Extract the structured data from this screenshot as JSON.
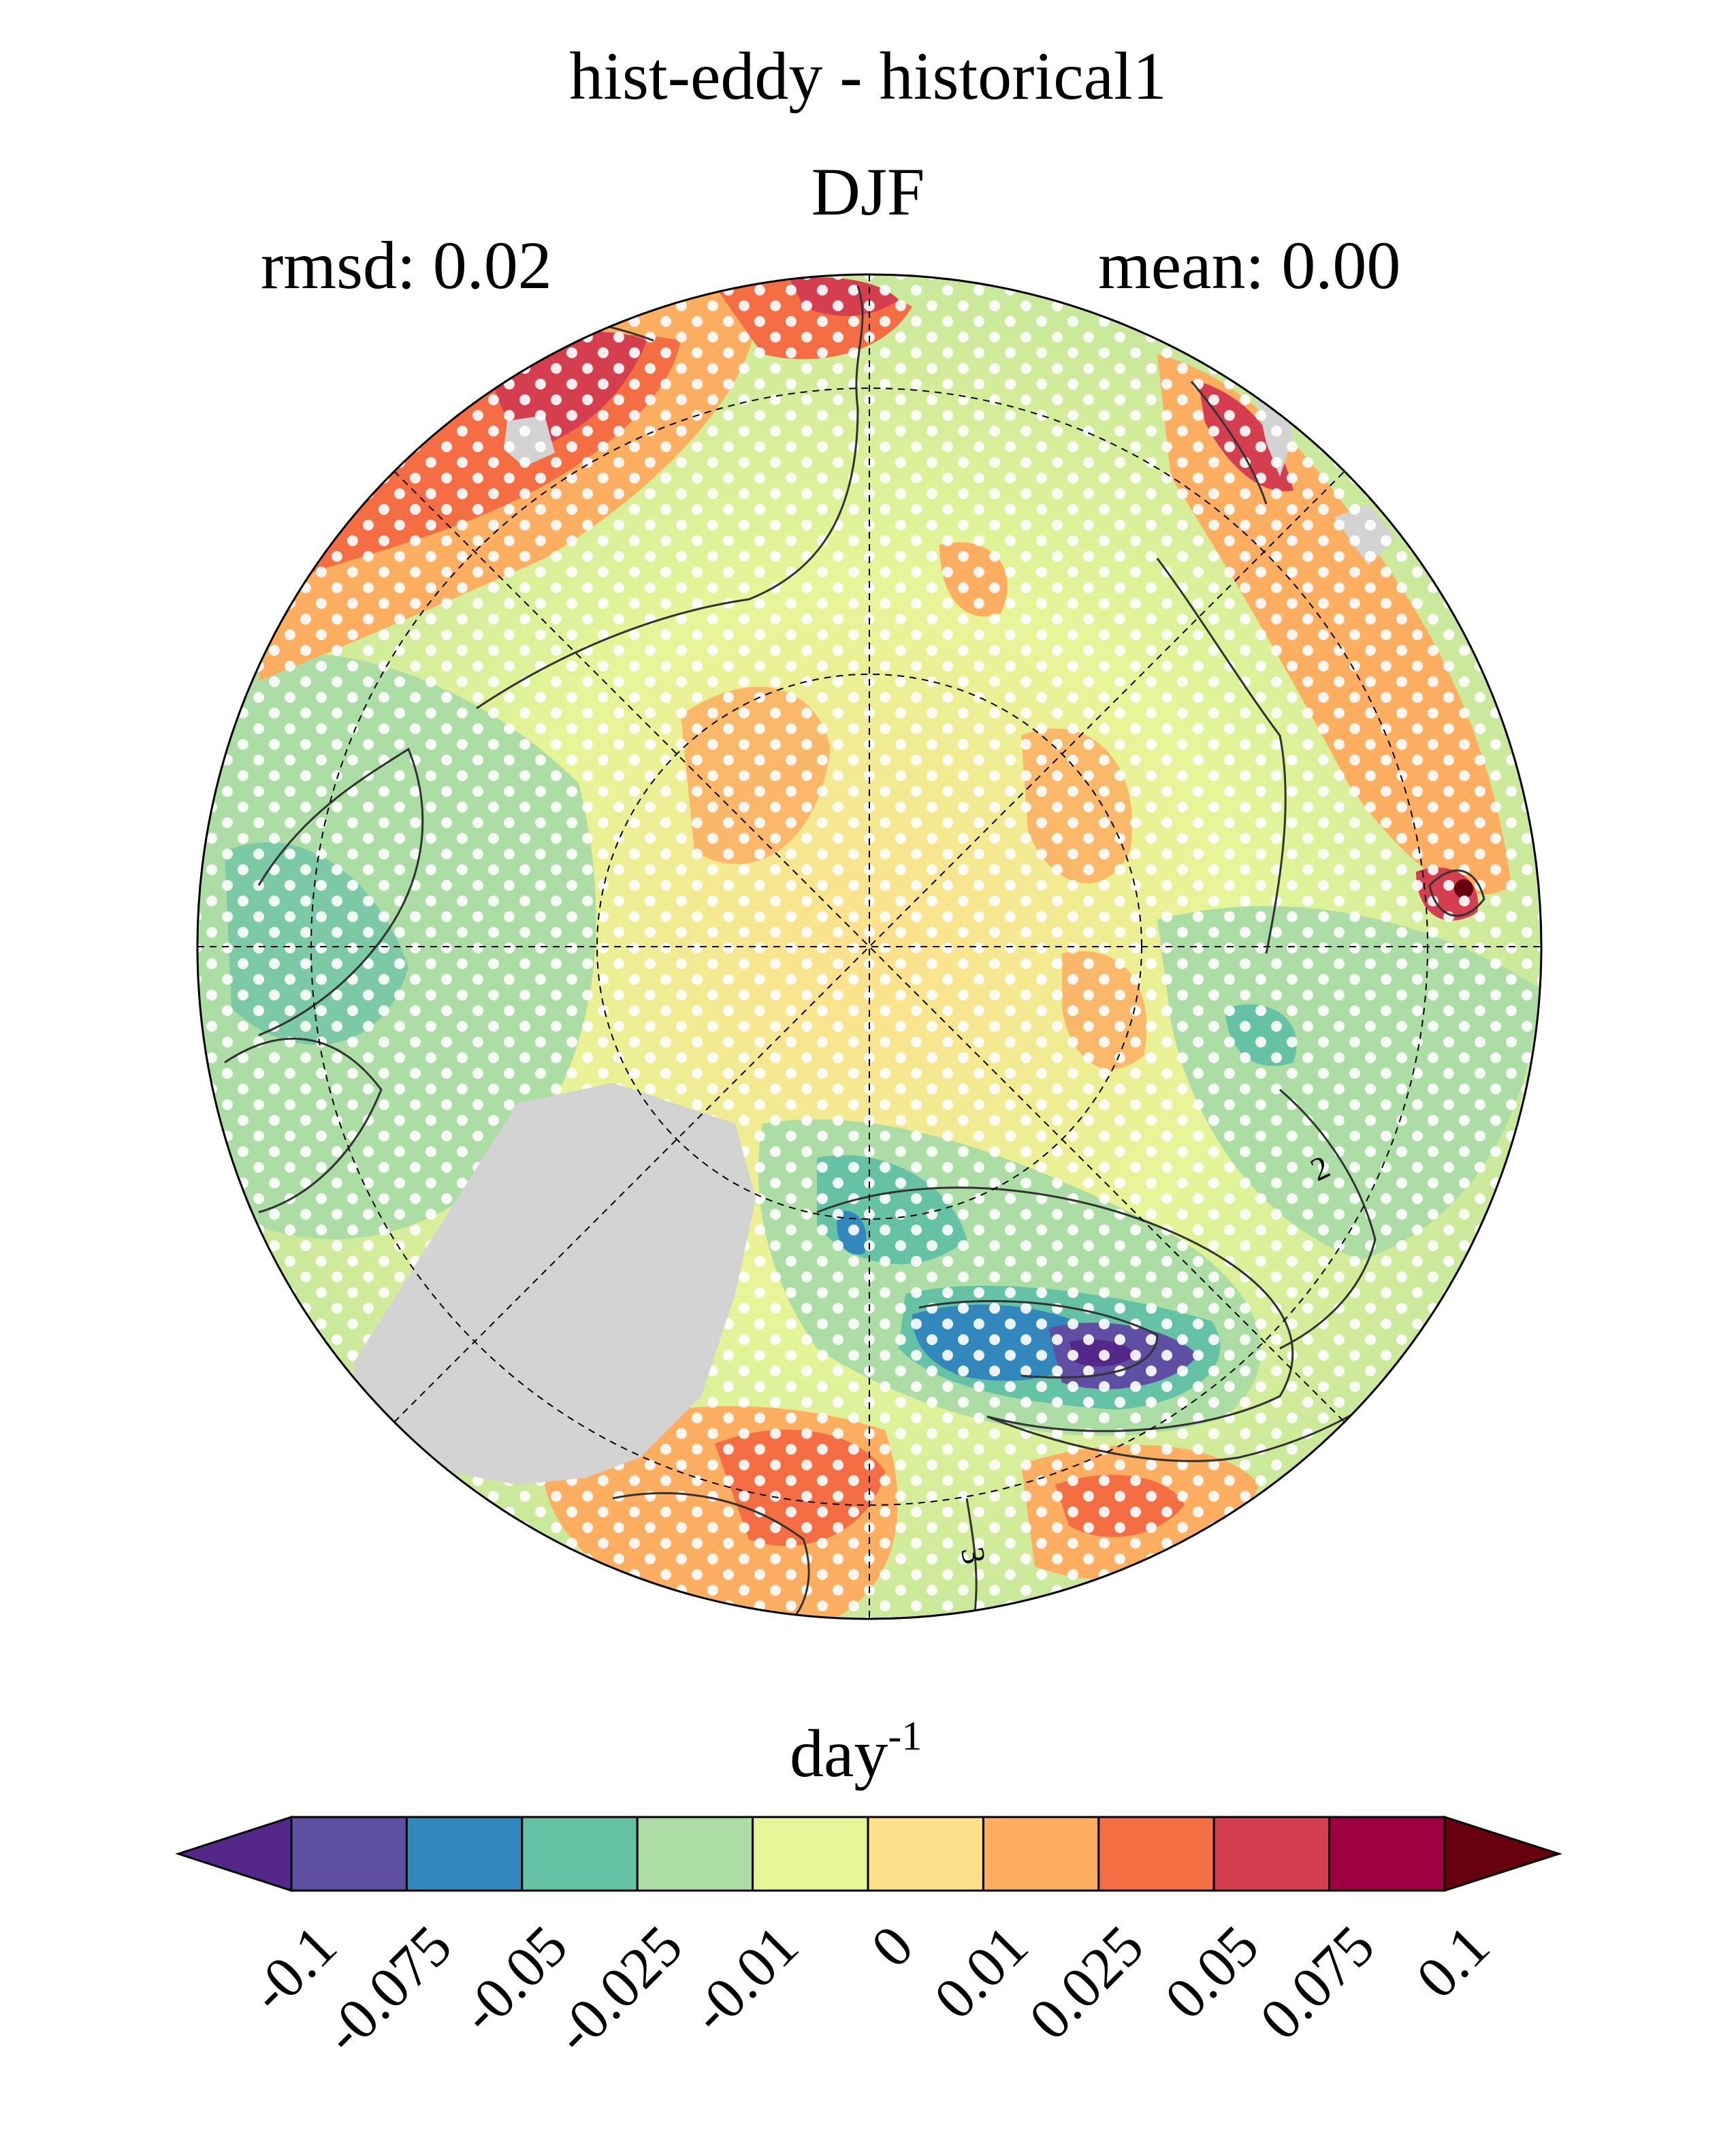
{
  "title": "hist-eddy - historical1",
  "season": "DJF",
  "rmsd_label": "rmsd: 0.02",
  "mean_label": "mean: 0.00",
  "units": {
    "base": "day",
    "exponent": "-1"
  },
  "map": {
    "projection": "north-polar-stereographic",
    "land_mask_color": "#d3d3d3",
    "stippling": "white dots (significance)",
    "gridlines": "dashed"
  },
  "colorbar": {
    "levels": [
      "-0.1",
      "-0.075",
      "-0.05",
      "-0.025",
      "-0.01",
      "0",
      "0.01",
      "0.025",
      "0.05",
      "0.075",
      "0.1"
    ],
    "colors": [
      "#542788",
      "#5e4fa2",
      "#3288bd",
      "#66c2a5",
      "#abdda4",
      "#e6f598",
      "#fee08b",
      "#fdae61",
      "#f46d43",
      "#d53e4f",
      "#9e0142",
      "#67000d"
    ],
    "extend": "both"
  },
  "contour_labels": [
    "2",
    "3"
  ]
}
